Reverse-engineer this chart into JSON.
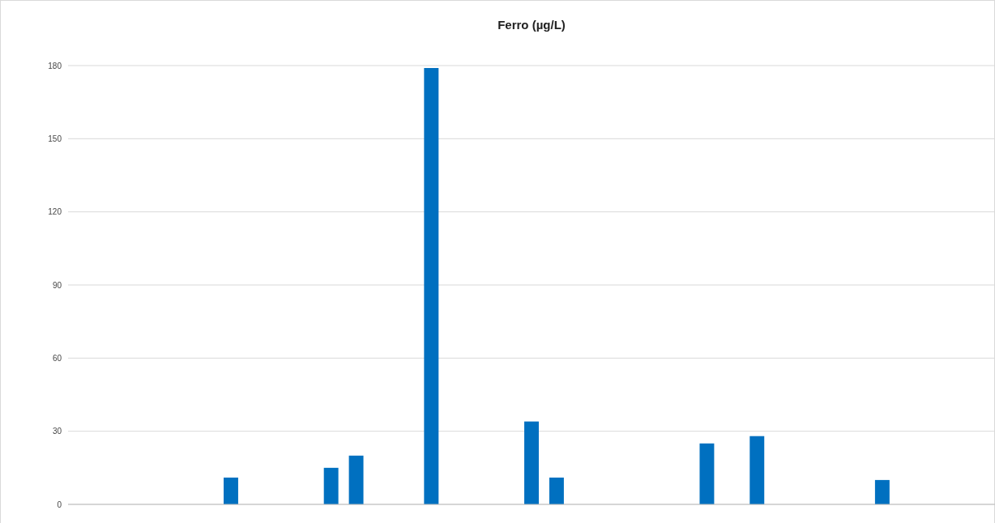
{
  "chart_data": {
    "type": "bar",
    "title": "Ferro (µg/L)",
    "categories": [
      null,
      null,
      null,
      null,
      null,
      null,
      null,
      null,
      null,
      null,
      null,
      null,
      null,
      null,
      null,
      null,
      null,
      null,
      null,
      null,
      null,
      null,
      null,
      null,
      null,
      null,
      null,
      null,
      null,
      null,
      null,
      null,
      null,
      null,
      null,
      null,
      null
    ],
    "values": [
      0,
      0,
      0,
      0,
      0,
      0,
      11,
      0,
      0,
      0,
      15,
      20,
      0,
      0,
      179,
      0,
      0,
      0,
      34,
      11,
      0,
      0,
      0,
      0,
      0,
      25,
      0,
      28,
      0,
      0,
      0,
      0,
      10,
      0,
      0,
      0,
      0
    ],
    "color": "#0070c0",
    "ylim": [
      0,
      180
    ],
    "yticks": [
      0,
      30,
      60,
      90,
      120,
      150,
      180
    ],
    "grid": "y"
  }
}
